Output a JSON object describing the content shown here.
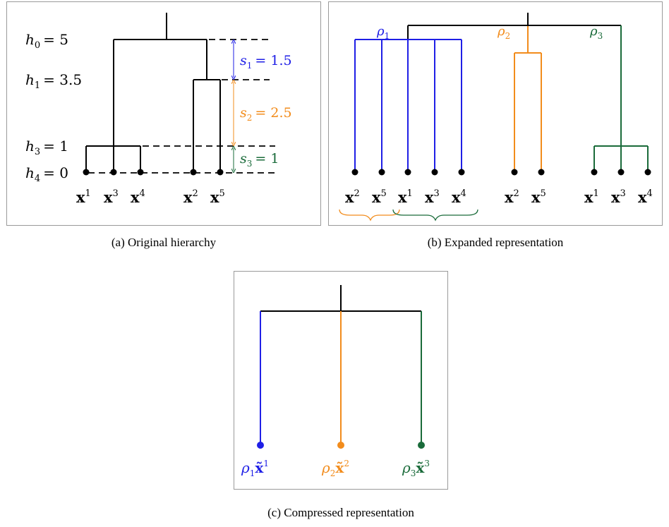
{
  "colors": {
    "black": "#000000",
    "blue": "#1f1fe6",
    "orange": "#f28c1c",
    "green": "#1a6b3a"
  },
  "panel_a": {
    "caption": "(a)  Original hierarchy",
    "levels": [
      {
        "h": "h",
        "sub": "0",
        "eq": "= 5"
      },
      {
        "h": "h",
        "sub": "1",
        "eq": "= 3.5"
      },
      {
        "h": "h",
        "sub": "3",
        "eq": "= 1"
      },
      {
        "h": "h",
        "sub": "4",
        "eq": "= 0"
      }
    ],
    "leaves": [
      {
        "base": "x",
        "sup": "1"
      },
      {
        "base": "x",
        "sup": "3"
      },
      {
        "base": "x",
        "sup": "4"
      },
      {
        "base": "x",
        "sup": "2"
      },
      {
        "base": "x",
        "sup": "5"
      }
    ],
    "gaps": [
      {
        "s": "s",
        "sub": "1",
        "eq": "= 1.5"
      },
      {
        "s": "s",
        "sub": "2",
        "eq": "= 2.5"
      },
      {
        "s": "s",
        "sub": "3",
        "eq": "= 1"
      }
    ]
  },
  "panel_b": {
    "caption": "(b)  Expanded representation",
    "branch_labels": [
      {
        "sym": "ρ",
        "sub": "1"
      },
      {
        "sym": "ρ",
        "sub": "2"
      },
      {
        "sym": "ρ",
        "sub": "3"
      }
    ],
    "leaves": [
      {
        "base": "x",
        "sup": "2"
      },
      {
        "base": "x",
        "sup": "5"
      },
      {
        "base": "x",
        "sup": "1"
      },
      {
        "base": "x",
        "sup": "3"
      },
      {
        "base": "x",
        "sup": "4"
      },
      {
        "base": "x",
        "sup": "2"
      },
      {
        "base": "x",
        "sup": "5"
      },
      {
        "base": "x",
        "sup": "1"
      },
      {
        "base": "x",
        "sup": "3"
      },
      {
        "base": "x",
        "sup": "4"
      }
    ]
  },
  "panel_c": {
    "caption": "(c)  Compressed representation",
    "leaves": [
      {
        "sym": "ρ",
        "sub": "1",
        "base": "x̃",
        "sup": "1"
      },
      {
        "sym": "ρ",
        "sub": "2",
        "base": "x̃",
        "sup": "2"
      },
      {
        "sym": "ρ",
        "sub": "3",
        "base": "x̃",
        "sup": "3"
      }
    ]
  }
}
